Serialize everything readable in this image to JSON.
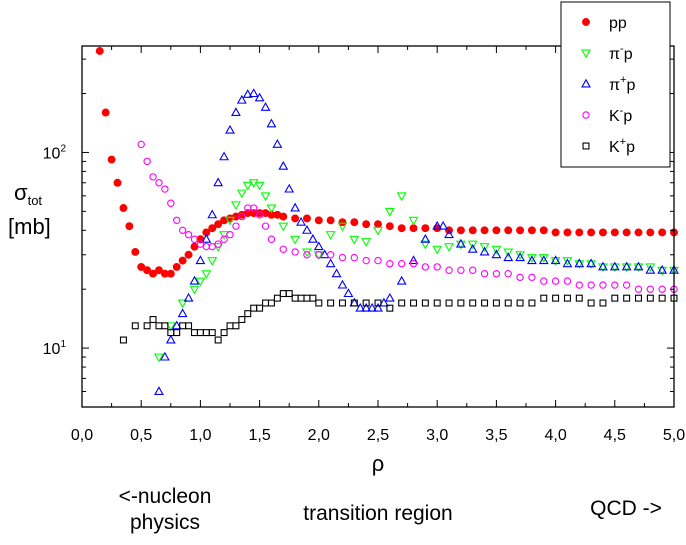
{
  "chart_data": {
    "type": "scatter",
    "xlabel": "ρ",
    "ylabel": {
      "main": "σ",
      "sub": "tot",
      "unit": "[mb]"
    },
    "xlim": [
      0.0,
      5.0
    ],
    "ylim": [
      5,
      350
    ],
    "y_scale": "log",
    "x_ticks": [
      "0,0",
      "0,5",
      "1,0",
      "1,5",
      "2,0",
      "2,5",
      "3,0",
      "3,5",
      "4,0",
      "4,5",
      "5,0"
    ],
    "y_ticks": [
      {
        "value": 10,
        "base": "10",
        "exp": "1"
      },
      {
        "value": 100,
        "base": "10",
        "exp": "2"
      }
    ],
    "grid": false,
    "legend_position": "top-right",
    "series": [
      {
        "label": {
          "base": "pp",
          "sup": "",
          "tail": ""
        },
        "color": "#ff0000",
        "marker": "filled-circle",
        "x": [
          0.15,
          0.2,
          0.25,
          0.3,
          0.35,
          0.4,
          0.45,
          0.5,
          0.55,
          0.6,
          0.65,
          0.7,
          0.75,
          0.8,
          0.85,
          0.9,
          0.95,
          1.0,
          1.05,
          1.1,
          1.15,
          1.2,
          1.25,
          1.3,
          1.35,
          1.4,
          1.45,
          1.5,
          1.55,
          1.6,
          1.65,
          1.7,
          1.8,
          1.9,
          2.0,
          2.1,
          2.2,
          2.3,
          2.4,
          2.5,
          2.6,
          2.7,
          2.8,
          2.9,
          3.0,
          3.1,
          3.2,
          3.3,
          3.4,
          3.5,
          3.6,
          3.7,
          3.8,
          3.9,
          4.0,
          4.1,
          4.2,
          4.3,
          4.4,
          4.5,
          4.6,
          4.7,
          4.8,
          4.9,
          5.0
        ],
        "y": [
          330,
          160,
          92,
          70,
          52,
          42,
          31,
          26,
          25,
          24,
          25,
          24,
          24,
          26,
          28,
          30,
          33,
          36,
          39,
          41,
          43,
          45,
          46,
          47,
          48,
          49,
          49,
          49,
          49,
          48,
          48,
          47,
          46,
          46,
          45,
          45,
          44,
          44,
          43,
          43,
          42,
          41,
          41,
          41,
          41,
          40,
          40,
          40,
          40,
          40,
          40,
          40,
          40,
          40,
          39,
          39,
          39,
          39,
          39,
          39,
          39,
          39,
          39,
          39,
          39
        ]
      },
      {
        "label": {
          "base": "π",
          "sup": "-",
          "tail": "p"
        },
        "color": "#00ff00",
        "marker": "open-triangle-down",
        "x": [
          0.65,
          0.75,
          0.85,
          0.95,
          1.0,
          1.05,
          1.1,
          1.15,
          1.2,
          1.25,
          1.3,
          1.35,
          1.4,
          1.45,
          1.5,
          1.55,
          1.6,
          1.7,
          1.8,
          1.9,
          2.0,
          2.1,
          2.2,
          2.3,
          2.4,
          2.5,
          2.6,
          2.7,
          2.8,
          2.9,
          3.0,
          3.1,
          3.2,
          3.3,
          3.4,
          3.5,
          3.6,
          3.7,
          3.8,
          3.9,
          4.0,
          4.1,
          4.2,
          4.3,
          4.4,
          4.5,
          4.6,
          4.7,
          4.8,
          4.9,
          5.0
        ],
        "y": [
          9,
          13,
          17,
          20,
          22,
          24,
          28,
          33,
          38,
          45,
          54,
          62,
          68,
          70,
          68,
          60,
          52,
          42,
          36,
          31,
          30,
          38,
          42,
          36,
          35,
          40,
          50,
          60,
          45,
          34,
          32,
          33,
          34,
          34,
          33,
          32,
          31,
          30,
          29,
          29,
          28,
          28,
          27,
          27,
          26,
          26,
          26,
          26,
          26,
          25,
          25
        ]
      },
      {
        "label": {
          "base": "π",
          "sup": "+",
          "tail": "p"
        },
        "color": "#0000ff",
        "marker": "open-triangle-up",
        "x": [
          0.65,
          0.7,
          0.75,
          0.8,
          0.85,
          0.9,
          0.95,
          1.0,
          1.05,
          1.1,
          1.15,
          1.2,
          1.25,
          1.3,
          1.35,
          1.4,
          1.45,
          1.5,
          1.55,
          1.6,
          1.65,
          1.7,
          1.75,
          1.8,
          1.85,
          1.9,
          1.95,
          2.0,
          2.05,
          2.1,
          2.15,
          2.2,
          2.25,
          2.3,
          2.35,
          2.4,
          2.45,
          2.5,
          2.55,
          2.6,
          2.7,
          2.8,
          2.9,
          3.0,
          3.05,
          3.1,
          3.2,
          3.3,
          3.4,
          3.5,
          3.6,
          3.7,
          3.8,
          3.9,
          4.0,
          4.1,
          4.2,
          4.3,
          4.4,
          4.5,
          4.6,
          4.7,
          4.8,
          4.9,
          5.0
        ],
        "y": [
          6,
          9,
          11,
          13,
          15,
          18,
          22,
          28,
          36,
          48,
          70,
          95,
          130,
          160,
          185,
          198,
          200,
          190,
          170,
          140,
          110,
          85,
          65,
          52,
          44,
          40,
          36,
          33,
          30,
          27,
          24,
          21,
          19,
          17,
          16,
          16,
          16,
          16,
          17,
          18,
          22,
          28,
          36,
          42,
          42,
          38,
          34,
          32,
          31,
          30,
          29,
          29,
          28,
          28,
          28,
          27,
          27,
          27,
          26,
          26,
          26,
          26,
          25,
          25,
          25
        ]
      },
      {
        "label": {
          "base": "K",
          "sup": "-",
          "tail": "p"
        },
        "color": "#ff00ff",
        "marker": "open-circle",
        "x": [
          0.5,
          0.55,
          0.6,
          0.65,
          0.7,
          0.75,
          0.8,
          0.85,
          0.9,
          0.95,
          1.0,
          1.05,
          1.1,
          1.15,
          1.2,
          1.25,
          1.3,
          1.35,
          1.4,
          1.45,
          1.5,
          1.55,
          1.6,
          1.7,
          1.8,
          1.9,
          2.0,
          2.1,
          2.2,
          2.3,
          2.4,
          2.5,
          2.6,
          2.7,
          2.8,
          2.9,
          3.0,
          3.1,
          3.2,
          3.3,
          3.4,
          3.5,
          3.6,
          3.7,
          3.8,
          3.9,
          4.0,
          4.1,
          4.2,
          4.3,
          4.4,
          4.5,
          4.6,
          4.7,
          4.8,
          4.9,
          5.0
        ],
        "y": [
          110,
          90,
          75,
          70,
          65,
          55,
          45,
          40,
          38,
          36,
          34,
          33,
          33,
          34,
          36,
          38,
          42,
          47,
          52,
          52,
          48,
          42,
          36,
          32,
          31,
          30,
          30,
          30,
          29,
          29,
          28,
          28,
          27,
          27,
          27,
          26,
          26,
          25,
          25,
          25,
          24,
          24,
          24,
          23,
          23,
          22,
          22,
          22,
          21,
          21,
          21,
          21,
          21,
          20,
          20,
          20,
          20
        ]
      },
      {
        "label": {
          "base": "K",
          "sup": "+",
          "tail": "p"
        },
        "color": "#000000",
        "marker": "open-square",
        "x": [
          0.35,
          0.45,
          0.55,
          0.6,
          0.65,
          0.7,
          0.75,
          0.8,
          0.85,
          0.9,
          0.95,
          1.0,
          1.05,
          1.1,
          1.15,
          1.2,
          1.25,
          1.3,
          1.35,
          1.4,
          1.45,
          1.5,
          1.55,
          1.6,
          1.65,
          1.7,
          1.75,
          1.8,
          1.85,
          1.9,
          1.95,
          2.0,
          2.1,
          2.2,
          2.3,
          2.4,
          2.5,
          2.6,
          2.7,
          2.8,
          2.9,
          3.0,
          3.1,
          3.2,
          3.3,
          3.4,
          3.5,
          3.6,
          3.7,
          3.8,
          3.9,
          4.0,
          4.1,
          4.2,
          4.3,
          4.4,
          4.5,
          4.6,
          4.7,
          4.8,
          4.9,
          5.0
        ],
        "y": [
          11,
          13,
          13,
          14,
          13,
          13,
          12,
          12,
          13,
          13,
          12,
          12,
          12,
          12,
          11,
          12,
          13,
          13,
          14,
          15,
          16,
          16,
          17,
          17,
          18,
          19,
          19,
          18,
          18,
          18,
          18,
          17,
          17,
          17,
          17,
          17,
          17,
          16,
          17,
          17,
          17,
          17,
          17,
          17,
          17,
          17,
          17,
          17,
          17,
          17,
          18,
          18,
          18,
          18,
          17,
          17,
          18,
          18,
          18,
          18,
          18,
          18
        ]
      }
    ]
  },
  "annotations": {
    "left": [
      "<-nucleon",
      "physics"
    ],
    "center": "transition region",
    "right": "QCD ->"
  }
}
